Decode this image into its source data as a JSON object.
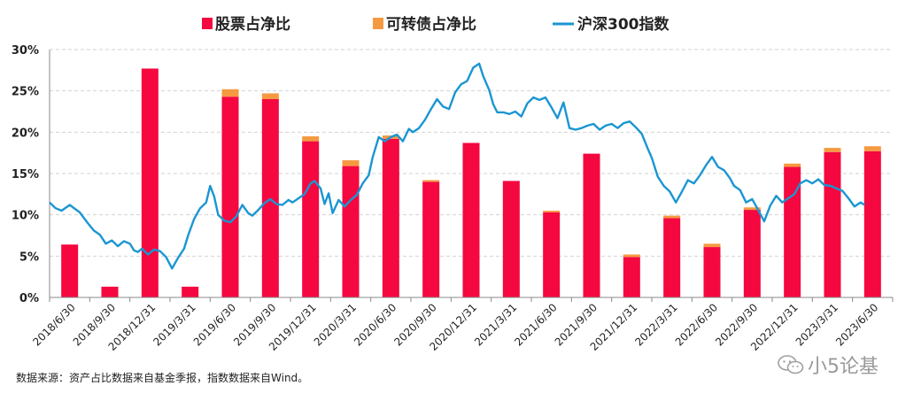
{
  "chart_data": {
    "type": "bar",
    "title": "",
    "categories": [
      "2018/6/30",
      "2018/9/30",
      "2018/12/31",
      "2019/3/31",
      "2019/6/30",
      "2019/9/30",
      "2019/12/31",
      "2020/3/31",
      "2020/6/30",
      "2020/9/30",
      "2020/12/31",
      "2021/3/31",
      "2021/6/30",
      "2021/9/30",
      "2021/12/31",
      "2022/3/31",
      "2022/6/30",
      "2022/9/30",
      "2022/12/31",
      "2023/3/31",
      "2023/6/30"
    ],
    "series": [
      {
        "name": "股票占净比",
        "color": "#f5073f",
        "stacked": true,
        "values": [
          6.4,
          1.3,
          27.7,
          1.3,
          24.3,
          24.0,
          18.9,
          15.9,
          19.2,
          14.0,
          18.7,
          14.1,
          10.3,
          17.4,
          4.9,
          9.6,
          6.1,
          10.6,
          15.8,
          17.6,
          17.7
        ]
      },
      {
        "name": "可转债占净比",
        "color": "#f59a40",
        "stacked": true,
        "values": [
          0,
          0,
          0,
          0,
          0.9,
          0.7,
          0.6,
          0.7,
          0.4,
          0.2,
          0,
          0,
          0.2,
          0,
          0.3,
          0.3,
          0.4,
          0.3,
          0.4,
          0.5,
          0.6
        ]
      },
      {
        "name": "沪深300指数",
        "type": "line",
        "color": "#1a96d2",
        "x": [
          0,
          0.15,
          0.3,
          0.5,
          0.75,
          0.95,
          1.1,
          1.25,
          1.4,
          1.55,
          1.7,
          1.85,
          2.0,
          2.1,
          2.2,
          2.3,
          2.45,
          2.6,
          2.75,
          2.9,
          3.05,
          3.2,
          3.35,
          3.45,
          3.6,
          3.75,
          3.9,
          4.0,
          4.1,
          4.2,
          4.35,
          4.5,
          4.65,
          4.8,
          4.95,
          5.05,
          5.2,
          5.35,
          5.5,
          5.65,
          5.8,
          5.95,
          6.05,
          6.2,
          6.35,
          6.5,
          6.6,
          6.75,
          6.85,
          6.95,
          7.05,
          7.2,
          7.35,
          7.5,
          7.65,
          7.8,
          7.95,
          8.05,
          8.2,
          8.35,
          8.5,
          8.65,
          8.8,
          8.95,
          9.05,
          9.2,
          9.35,
          9.5,
          9.65,
          9.8,
          9.95,
          10.1,
          10.25,
          10.4,
          10.55,
          10.7,
          10.8,
          10.95,
          11.05,
          11.15,
          11.3,
          11.45,
          11.6,
          11.75,
          11.9,
          12.05,
          12.2,
          12.35,
          12.5,
          12.65,
          12.8,
          12.95,
          13.1,
          13.25,
          13.4,
          13.55,
          13.7,
          13.85,
          14.0,
          14.15,
          14.3,
          14.45,
          14.6,
          14.75,
          14.9,
          15.0,
          15.15,
          15.3,
          15.45,
          15.6,
          15.75,
          15.9,
          16.05,
          16.2,
          16.35,
          16.5,
          16.65,
          16.8,
          16.95,
          17.05,
          17.2,
          17.35,
          17.5,
          17.65,
          17.8,
          17.95,
          18.1,
          18.25,
          18.4,
          18.55,
          18.7,
          18.85,
          19.0,
          19.15,
          19.3,
          19.45,
          19.6,
          19.75,
          19.9,
          20.05,
          20.2,
          20.3
        ],
        "values": [
          11.5,
          10.8,
          10.5,
          11.2,
          10.3,
          9.0,
          8.1,
          7.6,
          6.5,
          6.9,
          6.2,
          6.8,
          6.5,
          5.7,
          5.5,
          5.9,
          5.2,
          5.8,
          5.6,
          4.9,
          3.5,
          4.8,
          5.9,
          7.5,
          9.5,
          10.8,
          11.5,
          13.5,
          12.2,
          10.0,
          9.3,
          9.1,
          9.8,
          11.2,
          10.2,
          9.9,
          10.6,
          11.4,
          11.9,
          11.3,
          11.2,
          11.8,
          11.5,
          12.0,
          12.5,
          13.8,
          14.1,
          13.2,
          11.3,
          12.6,
          10.2,
          11.8,
          11.0,
          11.8,
          12.4,
          13.8,
          14.8,
          17.0,
          19.4,
          18.9,
          19.4,
          19.7,
          18.9,
          20.4,
          20.0,
          20.5,
          21.5,
          22.8,
          24.0,
          23.1,
          22.8,
          24.8,
          25.8,
          26.2,
          27.8,
          28.3,
          26.8,
          25.1,
          23.4,
          22.4,
          22.4,
          22.2,
          22.5,
          21.9,
          23.5,
          24.2,
          23.9,
          24.2,
          23.0,
          21.7,
          23.6,
          20.5,
          20.3,
          20.5,
          20.8,
          21.0,
          20.3,
          20.8,
          21.0,
          20.5,
          21.1,
          21.3,
          20.6,
          19.8,
          18.0,
          16.9,
          14.6,
          13.5,
          12.8,
          11.5,
          12.8,
          14.2,
          13.8,
          14.8,
          16.0,
          17.0,
          15.8,
          15.4,
          14.4,
          13.5,
          13.0,
          11.5,
          11.9,
          10.6,
          9.2,
          11.1,
          12.3,
          11.5,
          12.0,
          12.5,
          13.8,
          14.2,
          13.8,
          14.3,
          13.6,
          13.5,
          13.2,
          12.9,
          12.0,
          11.0,
          11.5,
          11.2
        ]
      }
    ],
    "ylim": [
      0,
      30
    ],
    "yticks": [
      "0%",
      "5%",
      "10%",
      "15%",
      "20%",
      "25%",
      "30%"
    ],
    "xlabel": "",
    "ylabel": "",
    "legend": "top"
  },
  "source_note": "数据来源：资产占比数据来自基金季报，指数数据来自Wind。",
  "watermark": "小5论基"
}
